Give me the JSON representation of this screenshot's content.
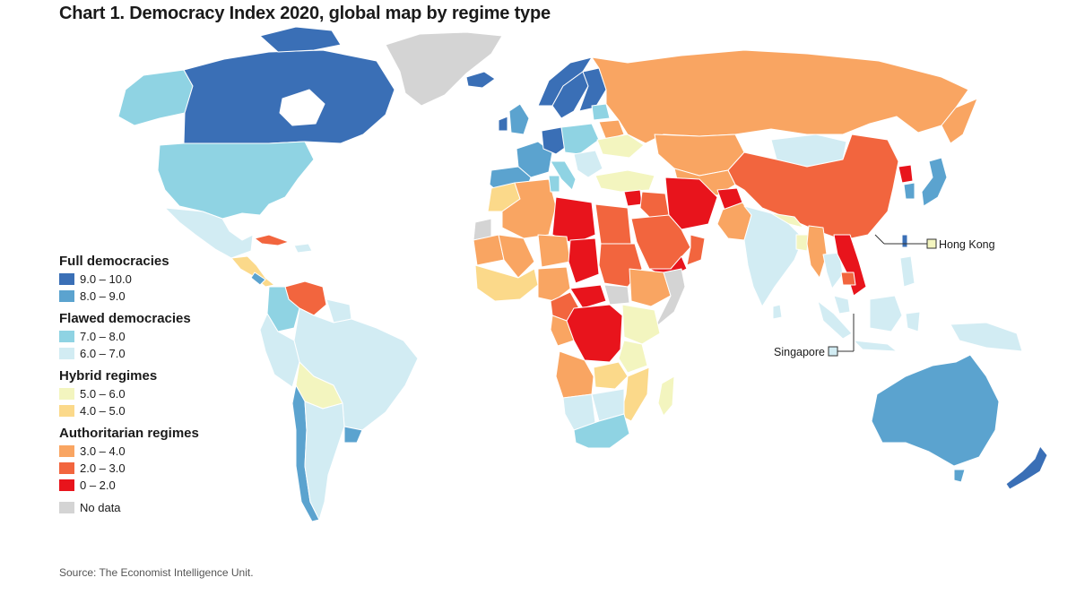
{
  "title": "Chart 1. Democracy Index 2020, global map by regime type",
  "source": "Source: The Economist Intelligence Unit.",
  "legend": {
    "groups": [
      {
        "heading": "Full democracies",
        "items": [
          {
            "label": "9.0 – 10.0",
            "color": "#3a6fb6"
          },
          {
            "label": "8.0 – 9.0",
            "color": "#5ba3cf"
          }
        ]
      },
      {
        "heading": "Flawed democracies",
        "items": [
          {
            "label": "7.0 – 8.0",
            "color": "#8fd3e3"
          },
          {
            "label": "6.0 – 7.0",
            "color": "#d2ecf3"
          }
        ]
      },
      {
        "heading": "Hybrid regimes",
        "items": [
          {
            "label": "5.0 – 6.0",
            "color": "#f3f5bf"
          },
          {
            "label": "4.0 – 5.0",
            "color": "#fbd98a"
          }
        ]
      },
      {
        "heading": "Authoritarian regimes",
        "items": [
          {
            "label": "3.0 – 4.0",
            "color": "#f9a562"
          },
          {
            "label": "2.0 – 3.0",
            "color": "#f2653e"
          },
          {
            "label": "0 – 2.0",
            "color": "#e8141c"
          }
        ]
      }
    ],
    "no_data": {
      "label": "No data",
      "color": "#d4d4d4"
    }
  },
  "callouts": {
    "hong_kong": "Hong Kong",
    "singapore": "Singapore"
  }
}
